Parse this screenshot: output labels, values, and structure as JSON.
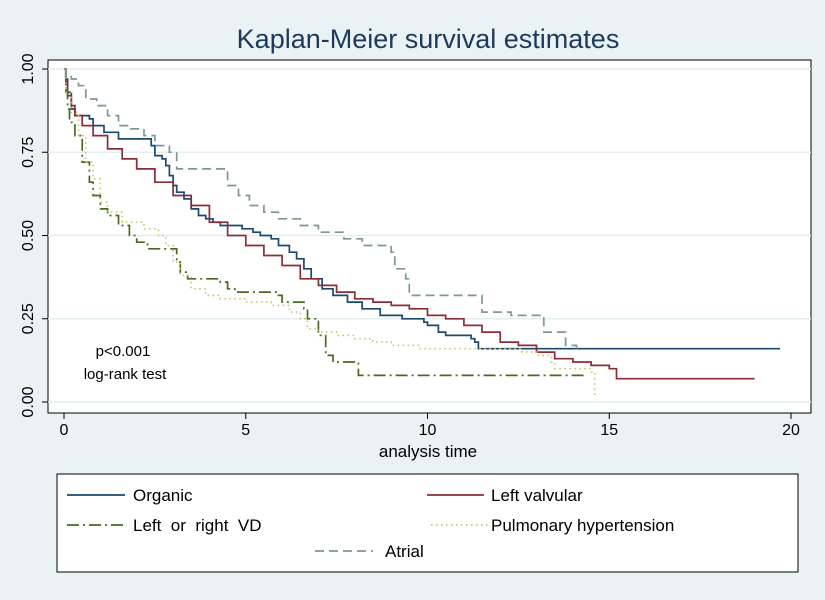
{
  "chart_data": {
    "type": "line",
    "title": "Kaplan-Meier survival estimates",
    "xlabel": "analysis time",
    "ylabel": "",
    "xlim": [
      0,
      20
    ],
    "ylim": [
      0,
      1
    ],
    "x_ticks": [
      "0",
      "5",
      "10",
      "15",
      "20"
    ],
    "y_ticks": [
      "0.00",
      "0.25",
      "0.50",
      "0.75",
      "1.00"
    ],
    "grid": true,
    "legend_position": "bottom",
    "annotations": [
      "p<0.001",
      "log-rank test"
    ],
    "series": [
      {
        "name": "Organic",
        "color": "#1a4a72",
        "dash": "solid",
        "points": [
          [
            0,
            1.0
          ],
          [
            0.05,
            0.97
          ],
          [
            0.1,
            0.93
          ],
          [
            0.2,
            0.88
          ],
          [
            0.3,
            0.86
          ],
          [
            0.7,
            0.85
          ],
          [
            0.8,
            0.83
          ],
          [
            1.1,
            0.81
          ],
          [
            1.5,
            0.79
          ],
          [
            2.3,
            0.79
          ],
          [
            2.4,
            0.77
          ],
          [
            2.5,
            0.74
          ],
          [
            2.7,
            0.73
          ],
          [
            2.8,
            0.71
          ],
          [
            2.9,
            0.68
          ],
          [
            3.0,
            0.65
          ],
          [
            3.1,
            0.63
          ],
          [
            3.3,
            0.61
          ],
          [
            3.5,
            0.58
          ],
          [
            3.7,
            0.56
          ],
          [
            3.9,
            0.55
          ],
          [
            4.1,
            0.54
          ],
          [
            4.3,
            0.53
          ],
          [
            4.9,
            0.52
          ],
          [
            5.2,
            0.51
          ],
          [
            5.4,
            0.5
          ],
          [
            5.7,
            0.49
          ],
          [
            5.9,
            0.47
          ],
          [
            6.2,
            0.45
          ],
          [
            6.4,
            0.43
          ],
          [
            6.6,
            0.4
          ],
          [
            6.8,
            0.37
          ],
          [
            7.1,
            0.34
          ],
          [
            7.4,
            0.32
          ],
          [
            7.8,
            0.3
          ],
          [
            8.2,
            0.28
          ],
          [
            8.7,
            0.26
          ],
          [
            9.3,
            0.25
          ],
          [
            9.9,
            0.24
          ],
          [
            10.0,
            0.23
          ],
          [
            10.3,
            0.21
          ],
          [
            10.5,
            0.2
          ],
          [
            11.1,
            0.2
          ],
          [
            11.2,
            0.19
          ],
          [
            11.3,
            0.18
          ],
          [
            11.4,
            0.16
          ],
          [
            14.9,
            0.16
          ],
          [
            19.7,
            0.16
          ]
        ]
      },
      {
        "name": "Left valvular",
        "color": "#8b2e38",
        "dash": "solid",
        "points": [
          [
            0,
            1.0
          ],
          [
            0.05,
            0.96
          ],
          [
            0.1,
            0.92
          ],
          [
            0.2,
            0.89
          ],
          [
            0.3,
            0.86
          ],
          [
            0.5,
            0.83
          ],
          [
            0.8,
            0.8
          ],
          [
            1.2,
            0.76
          ],
          [
            1.6,
            0.73
          ],
          [
            2.0,
            0.7
          ],
          [
            2.5,
            0.66
          ],
          [
            3.0,
            0.62
          ],
          [
            3.5,
            0.59
          ],
          [
            4.0,
            0.54
          ],
          [
            4.5,
            0.5
          ],
          [
            5.0,
            0.47
          ],
          [
            5.5,
            0.44
          ],
          [
            6.0,
            0.41
          ],
          [
            6.5,
            0.37
          ],
          [
            7.0,
            0.35
          ],
          [
            7.5,
            0.33
          ],
          [
            8.0,
            0.31
          ],
          [
            8.5,
            0.3
          ],
          [
            9.0,
            0.29
          ],
          [
            9.5,
            0.28
          ],
          [
            10.0,
            0.26
          ],
          [
            10.5,
            0.25
          ],
          [
            11.0,
            0.23
          ],
          [
            11.5,
            0.21
          ],
          [
            12.0,
            0.18
          ],
          [
            12.5,
            0.17
          ],
          [
            13.0,
            0.15
          ],
          [
            13.5,
            0.13
          ],
          [
            14.0,
            0.12
          ],
          [
            14.5,
            0.11
          ],
          [
            15.0,
            0.1
          ],
          [
            15.2,
            0.07
          ],
          [
            19.0,
            0.07
          ]
        ]
      },
      {
        "name": "Left  or  right  VD",
        "color": "#4a6a1e",
        "dash": "dashdot",
        "points": [
          [
            0,
            1.0
          ],
          [
            0.05,
            0.93
          ],
          [
            0.1,
            0.88
          ],
          [
            0.15,
            0.84
          ],
          [
            0.3,
            0.8
          ],
          [
            0.5,
            0.72
          ],
          [
            0.7,
            0.66
          ],
          [
            0.8,
            0.62
          ],
          [
            1.0,
            0.58
          ],
          [
            1.2,
            0.56
          ],
          [
            1.5,
            0.53
          ],
          [
            1.8,
            0.5
          ],
          [
            2.0,
            0.48
          ],
          [
            2.3,
            0.46
          ],
          [
            2.9,
            0.46
          ],
          [
            3.1,
            0.42
          ],
          [
            3.2,
            0.39
          ],
          [
            3.4,
            0.37
          ],
          [
            4.3,
            0.36
          ],
          [
            4.5,
            0.34
          ],
          [
            4.7,
            0.33
          ],
          [
            5.9,
            0.32
          ],
          [
            6.0,
            0.3
          ],
          [
            6.6,
            0.28
          ],
          [
            6.7,
            0.25
          ],
          [
            7.0,
            0.2
          ],
          [
            7.2,
            0.14
          ],
          [
            7.4,
            0.12
          ],
          [
            7.9,
            0.12
          ],
          [
            8.1,
            0.08
          ],
          [
            14.4,
            0.08
          ]
        ]
      },
      {
        "name": "Pulmonary hypertension",
        "color": "#c9c46a",
        "dash": "dotted",
        "points": [
          [
            0,
            1.0
          ],
          [
            0.05,
            0.93
          ],
          [
            0.2,
            0.87
          ],
          [
            0.4,
            0.8
          ],
          [
            0.6,
            0.72
          ],
          [
            0.8,
            0.67
          ],
          [
            1.0,
            0.6
          ],
          [
            1.2,
            0.57
          ],
          [
            1.6,
            0.54
          ],
          [
            2.2,
            0.52
          ],
          [
            2.6,
            0.5
          ],
          [
            2.8,
            0.47
          ],
          [
            3.0,
            0.42
          ],
          [
            3.2,
            0.38
          ],
          [
            3.5,
            0.34
          ],
          [
            3.9,
            0.32
          ],
          [
            4.3,
            0.31
          ],
          [
            5.0,
            0.3
          ],
          [
            5.7,
            0.29
          ],
          [
            6.2,
            0.27
          ],
          [
            6.5,
            0.25
          ],
          [
            6.7,
            0.22
          ],
          [
            7.0,
            0.21
          ],
          [
            7.5,
            0.2
          ],
          [
            8.0,
            0.19
          ],
          [
            8.5,
            0.18
          ],
          [
            9.0,
            0.17
          ],
          [
            9.6,
            0.17
          ],
          [
            9.8,
            0.16
          ],
          [
            12.4,
            0.16
          ],
          [
            12.6,
            0.15
          ],
          [
            13.0,
            0.14
          ],
          [
            13.4,
            0.12
          ],
          [
            13.5,
            0.1
          ],
          [
            14.3,
            0.1
          ],
          [
            14.5,
            0.09
          ],
          [
            14.6,
            0.02
          ]
        ]
      },
      {
        "name": "Atrial",
        "color": "#7d9895",
        "dash": "dashed",
        "points": [
          [
            0,
            1.0
          ],
          [
            0.05,
            0.98
          ],
          [
            0.2,
            0.97
          ],
          [
            0.4,
            0.95
          ],
          [
            0.6,
            0.91
          ],
          [
            0.9,
            0.89
          ],
          [
            1.2,
            0.86
          ],
          [
            1.5,
            0.83
          ],
          [
            1.8,
            0.82
          ],
          [
            2.2,
            0.8
          ],
          [
            2.5,
            0.77
          ],
          [
            2.9,
            0.75
          ],
          [
            3.1,
            0.7
          ],
          [
            4.2,
            0.7
          ],
          [
            4.5,
            0.65
          ],
          [
            4.8,
            0.62
          ],
          [
            5.1,
            0.59
          ],
          [
            5.5,
            0.57
          ],
          [
            5.9,
            0.55
          ],
          [
            6.5,
            0.53
          ],
          [
            7.0,
            0.51
          ],
          [
            7.7,
            0.49
          ],
          [
            8.2,
            0.47
          ],
          [
            8.9,
            0.47
          ],
          [
            9.0,
            0.45
          ],
          [
            9.1,
            0.4
          ],
          [
            9.4,
            0.37
          ],
          [
            9.5,
            0.32
          ],
          [
            11.4,
            0.32
          ],
          [
            11.5,
            0.27
          ],
          [
            12.2,
            0.27
          ],
          [
            12.3,
            0.26
          ],
          [
            13.1,
            0.26
          ],
          [
            13.2,
            0.21
          ],
          [
            13.7,
            0.21
          ],
          [
            13.8,
            0.17
          ],
          [
            14.1,
            0.16
          ]
        ]
      }
    ]
  }
}
